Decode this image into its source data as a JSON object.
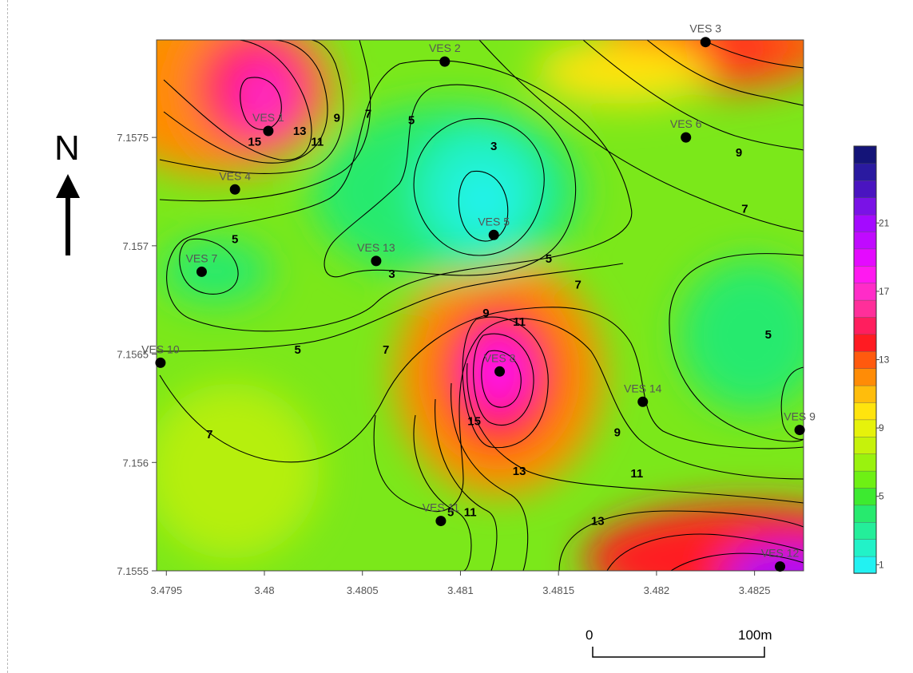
{
  "map": {
    "x_ticks": [
      "3.4795",
      "3.48",
      "3.4805",
      "3.481",
      "3.4815",
      "3.482",
      "3.4825"
    ],
    "y_ticks": [
      "7.1575",
      "7.157",
      "7.1565",
      "7.156",
      "7.1555"
    ],
    "colors": {
      "low": "#22f2f2",
      "lowmid": "#26ea82",
      "mid": "#6ff00e",
      "yellowgreen": "#c6f20b",
      "yellow": "#ffe40e",
      "orange": "#ff8c06",
      "red": "#ff1b22",
      "pink": "#ff2f9a",
      "magenta": "#ff19f0",
      "violet": "#a40aff"
    },
    "stations": [
      {
        "label": "VES 3",
        "x": 3.48225,
        "y": 7.15794
      },
      {
        "label": "VES 2",
        "x": 3.48092,
        "y": 7.15785
      },
      {
        "label": "VES 1",
        "x": 3.48002,
        "y": 7.15753
      },
      {
        "label": "VES 6",
        "x": 3.48215,
        "y": 7.1575
      },
      {
        "label": "VES 4",
        "x": 3.47985,
        "y": 7.15726
      },
      {
        "label": "VES 5",
        "x": 3.48117,
        "y": 7.15705
      },
      {
        "label": "VES 13",
        "x": 3.48057,
        "y": 7.15693
      },
      {
        "label": "VES 7",
        "x": 3.47968,
        "y": 7.15688
      },
      {
        "label": "VES 10",
        "x": 3.47947,
        "y": 7.15646
      },
      {
        "label": "VES 8",
        "x": 3.4812,
        "y": 7.15642
      },
      {
        "label": "VES 14",
        "x": 3.48193,
        "y": 7.15628
      },
      {
        "label": "VES 9",
        "x": 3.48273,
        "y": 7.15615
      },
      {
        "label": "VES 11",
        "x": 3.4809,
        "y": 7.15573
      },
      {
        "label": "VES 12",
        "x": 3.48263,
        "y": 7.15552
      }
    ],
    "contour_labels": [
      {
        "text": "15",
        "x": 3.47995,
        "y": 7.15748
      },
      {
        "text": "13",
        "x": 3.48018,
        "y": 7.15753
      },
      {
        "text": "11",
        "x": 3.48027,
        "y": 7.15748
      },
      {
        "text": "9",
        "x": 3.48037,
        "y": 7.15759
      },
      {
        "text": "7",
        "x": 3.48053,
        "y": 7.15761
      },
      {
        "text": "5",
        "x": 3.48075,
        "y": 7.15758
      },
      {
        "text": "3",
        "x": 3.48117,
        "y": 7.15746
      },
      {
        "text": "9",
        "x": 3.48242,
        "y": 7.15743
      },
      {
        "text": "7",
        "x": 3.48245,
        "y": 7.15717
      },
      {
        "text": "5",
        "x": 3.47985,
        "y": 7.15703
      },
      {
        "text": "3",
        "x": 3.48065,
        "y": 7.15687
      },
      {
        "text": "5",
        "x": 3.48145,
        "y": 7.15694
      },
      {
        "text": "7",
        "x": 3.4816,
        "y": 7.15682
      },
      {
        "text": "9",
        "x": 3.48113,
        "y": 7.15669
      },
      {
        "text": "11",
        "x": 3.4813,
        "y": 7.15665
      },
      {
        "text": "5",
        "x": 3.48257,
        "y": 7.15659
      },
      {
        "text": "5",
        "x": 3.48017,
        "y": 7.15652
      },
      {
        "text": "7",
        "x": 3.48062,
        "y": 7.15652
      },
      {
        "text": "15",
        "x": 3.48107,
        "y": 7.15619
      },
      {
        "text": "9",
        "x": 3.4818,
        "y": 7.15614
      },
      {
        "text": "7",
        "x": 3.47972,
        "y": 7.15613
      },
      {
        "text": "13",
        "x": 3.4813,
        "y": 7.15596
      },
      {
        "text": "11",
        "x": 3.4819,
        "y": 7.15595
      },
      {
        "text": "5",
        "x": 3.48095,
        "y": 7.15577
      },
      {
        "text": "11",
        "x": 3.48105,
        "y": 7.15577
      },
      {
        "text": "13",
        "x": 3.4817,
        "y": 7.15573
      }
    ]
  },
  "legend": {
    "labels": [
      "21",
      "17",
      "13",
      "9",
      "5",
      "1"
    ],
    "bands": [
      "#22f2f2",
      "#22f2c8",
      "#24ee9a",
      "#27ea6e",
      "#3dea30",
      "#6ef014",
      "#9af20e",
      "#c6f20b",
      "#e6f20b",
      "#ffe40e",
      "#ffbd0c",
      "#ff8c06",
      "#ff5a0e",
      "#ff1b22",
      "#ff1e5e",
      "#ff2f9a",
      "#ff2cc8",
      "#ff19f0",
      "#e40aff",
      "#c00aff",
      "#a40aff",
      "#7a12e6",
      "#4a14c0",
      "#2a1aa0",
      "#141478"
    ]
  },
  "north": {
    "label": "N"
  },
  "scale": {
    "zero": "0",
    "end": "100m"
  }
}
